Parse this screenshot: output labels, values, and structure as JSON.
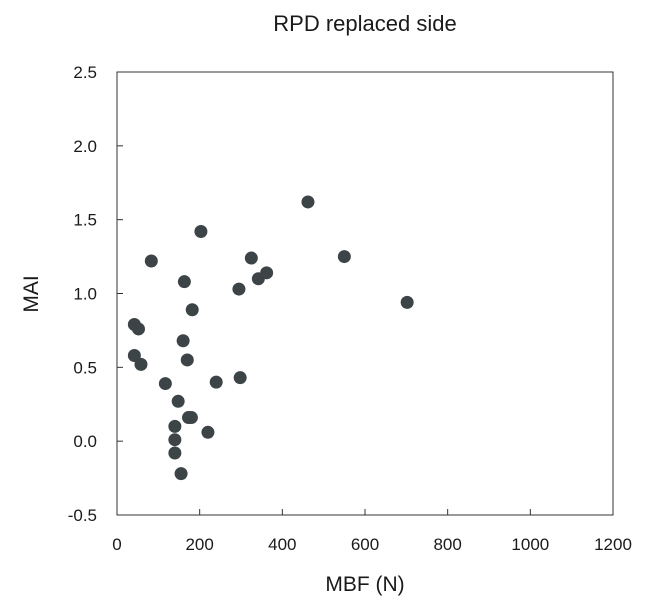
{
  "chart_data": {
    "type": "scatter",
    "title": "RPD replaced side",
    "xlabel": "MBF (N)",
    "ylabel": "MAI",
    "xlim": [
      0,
      1200
    ],
    "ylim": [
      -0.5,
      2.5
    ],
    "xticks": [
      0,
      200,
      400,
      600,
      800,
      1000,
      1200
    ],
    "xtick_labels": [
      "0",
      "200",
      "400",
      "600",
      "800",
      "1000",
      "1200"
    ],
    "yticks": [
      -0.5,
      0.0,
      0.5,
      1.0,
      1.5,
      2.0,
      2.5
    ],
    "ytick_labels": [
      "-0.5",
      "0.0",
      "0.5",
      "1.0",
      "1.5",
      "2.0",
      "2.5"
    ],
    "grid": false,
    "legend": "none",
    "marker_color": "#3d4447",
    "points": [
      {
        "x": 42,
        "y": 0.79
      },
      {
        "x": 52,
        "y": 0.76
      },
      {
        "x": 42,
        "y": 0.58
      },
      {
        "x": 58,
        "y": 0.52
      },
      {
        "x": 83,
        "y": 1.22
      },
      {
        "x": 117,
        "y": 0.39
      },
      {
        "x": 140,
        "y": 0.1
      },
      {
        "x": 140,
        "y": 0.01
      },
      {
        "x": 140,
        "y": -0.08
      },
      {
        "x": 148,
        "y": 0.27
      },
      {
        "x": 155,
        "y": -0.22
      },
      {
        "x": 160,
        "y": 0.68
      },
      {
        "x": 163,
        "y": 1.08
      },
      {
        "x": 170,
        "y": 0.55
      },
      {
        "x": 173,
        "y": 0.16
      },
      {
        "x": 180,
        "y": 0.16
      },
      {
        "x": 182,
        "y": 0.89
      },
      {
        "x": 203,
        "y": 1.42
      },
      {
        "x": 220,
        "y": 0.06
      },
      {
        "x": 240,
        "y": 0.4
      },
      {
        "x": 295,
        "y": 1.03
      },
      {
        "x": 298,
        "y": 0.43
      },
      {
        "x": 325,
        "y": 1.24
      },
      {
        "x": 342,
        "y": 1.1
      },
      {
        "x": 362,
        "y": 1.14
      },
      {
        "x": 462,
        "y": 1.62
      },
      {
        "x": 550,
        "y": 1.25
      },
      {
        "x": 702,
        "y": 0.94
      }
    ]
  }
}
